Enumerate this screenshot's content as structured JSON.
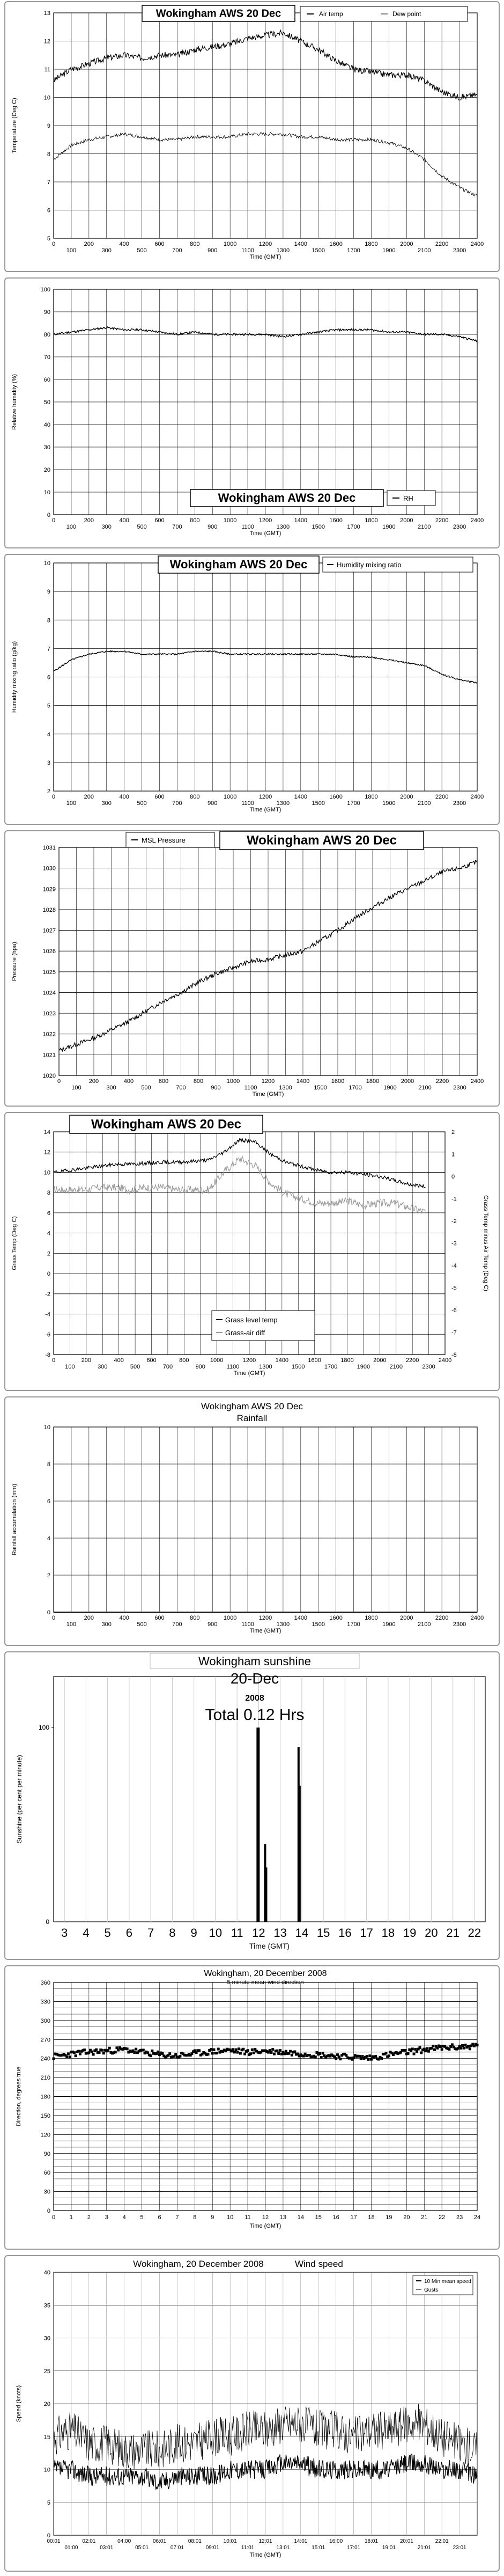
{
  "charts": [
    {
      "type": "line",
      "title": "Wokingham AWS 20 Dec",
      "ylabel": "Temperature (Deg C)",
      "xlabel": "Time (GMT)",
      "yticks": [
        "5",
        "6",
        "7",
        "8",
        "9",
        "10",
        "11",
        "12",
        "13"
      ],
      "ylim": [
        5,
        13
      ],
      "xticks_top": [
        "0",
        "200",
        "400",
        "600",
        "800",
        "1000",
        "1200",
        "1400",
        "1600",
        "1800",
        "2000",
        "2200",
        "2400"
      ],
      "xticks_bottom": [
        "100",
        "300",
        "500",
        "700",
        "900",
        "1100",
        "1300",
        "1500",
        "1700",
        "1900",
        "2100",
        "2300"
      ],
      "legend": [
        "Air temp",
        "Dew point"
      ]
    },
    {
      "type": "line",
      "title": "Wokingham AWS 20 Dec",
      "ylabel": "Relative humidity (%)",
      "xlabel": "Time (GMT)",
      "yticks": [
        "0",
        "10",
        "20",
        "30",
        "40",
        "50",
        "60",
        "70",
        "80",
        "90",
        "100"
      ],
      "ylim": [
        0,
        100
      ],
      "xticks_top": [
        "0",
        "200",
        "400",
        "600",
        "800",
        "1000",
        "1200",
        "1400",
        "1600",
        "1800",
        "2000",
        "2200",
        "2400"
      ],
      "xticks_bottom": [
        "100",
        "300",
        "500",
        "700",
        "900",
        "1100",
        "1300",
        "1500",
        "1700",
        "1900",
        "2100",
        "2300"
      ],
      "legend": [
        "RH"
      ]
    },
    {
      "type": "line",
      "title": "Wokingham AWS 20 Dec",
      "ylabel": "Humidity mixing ratio (g/kg)",
      "xlabel": "Time (GMT)",
      "yticks": [
        "2",
        "3",
        "4",
        "5",
        "6",
        "7",
        "8",
        "9",
        "10"
      ],
      "ylim": [
        2,
        10
      ],
      "xticks_top": [
        "0",
        "200",
        "400",
        "600",
        "800",
        "1000",
        "1200",
        "1400",
        "1600",
        "1800",
        "2000",
        "2200",
        "2400"
      ],
      "xticks_bottom": [
        "100",
        "300",
        "500",
        "700",
        "900",
        "1100",
        "1300",
        "1500",
        "1700",
        "1900",
        "2100",
        "2300"
      ],
      "legend": [
        "Humidity mixing ratio"
      ]
    },
    {
      "type": "line",
      "title": "Wokingham AWS 20 Dec",
      "ylabel": "Pressure (hpa)",
      "xlabel": "Time (GMT)",
      "yticks": [
        "1020",
        "1021",
        "1022",
        "1023",
        "1024",
        "1025",
        "1026",
        "1027",
        "1028",
        "1029",
        "1030",
        "1031"
      ],
      "ylim": [
        1020,
        1031
      ],
      "xticks_top": [
        "0",
        "200",
        "400",
        "600",
        "800",
        "1000",
        "1200",
        "1400",
        "1600",
        "1800",
        "2000",
        "2200",
        "2400"
      ],
      "xticks_bottom": [
        "100",
        "300",
        "500",
        "700",
        "900",
        "1100",
        "1300",
        "1500",
        "1700",
        "1900",
        "2100",
        "2300"
      ],
      "legend": [
        "MSL Pressure"
      ]
    },
    {
      "type": "line",
      "title": "Wokingham AWS 20 Dec",
      "ylabel": "Grass Temp (Deg C)",
      "ylabel2": "Grass Temp minus Air Temp (Deg C)",
      "xlabel": "Time (GMT)",
      "yticks": [
        "-8",
        "-6",
        "-4",
        "-2",
        "0",
        "2",
        "4",
        "6",
        "8",
        "10",
        "12",
        "14"
      ],
      "ylim": [
        -8,
        14
      ],
      "yticks2": [
        "-8",
        "-7",
        "-6",
        "-5",
        "-4",
        "-3",
        "-2",
        "-1",
        "0",
        "1",
        "2"
      ],
      "xticks_top": [
        "0",
        "200",
        "400",
        "600",
        "800",
        "1000",
        "1200",
        "1400",
        "1600",
        "1800",
        "2000",
        "2200",
        "2400"
      ],
      "xticks_bottom": [
        "100",
        "300",
        "500",
        "700",
        "900",
        "1100",
        "1300",
        "1500",
        "1700",
        "1900",
        "2100",
        "2300"
      ],
      "legend": [
        "Grass level temp",
        "Grass-air diff"
      ]
    },
    {
      "type": "line",
      "title": "Wokingham AWS 20 Dec",
      "subtitle": "Rainfall",
      "ylabel": "Rainfall accumulation (mm)",
      "xlabel": "Time (GMT)",
      "yticks": [
        "0",
        "2",
        "4",
        "6",
        "8",
        "10"
      ],
      "ylim": [
        0,
        10
      ],
      "xticks_top": [
        "0",
        "200",
        "400",
        "600",
        "800",
        "1000",
        "1200",
        "1400",
        "1600",
        "1800",
        "2000",
        "2200",
        "2400"
      ],
      "xticks_bottom": [
        "100",
        "300",
        "500",
        "700",
        "900",
        "1100",
        "1300",
        "1500",
        "1700",
        "1900",
        "2100",
        "2300"
      ]
    },
    {
      "type": "bar",
      "title": "Wokingham sunshine",
      "date": "20-Dec",
      "year": "2008",
      "total": "Total 0.12 Hrs",
      "ylabel": "Sunshine (per cent per minute)",
      "xlabel": "Time (GMT)",
      "yticks": [
        "0",
        "100"
      ],
      "xticks": [
        "3",
        "4",
        "5",
        "6",
        "7",
        "8",
        "9",
        "10",
        "11",
        "12",
        "13",
        "14",
        "15",
        "16",
        "17",
        "18",
        "19",
        "20",
        "21",
        "22"
      ]
    },
    {
      "type": "scatter",
      "title": "Wokingham,  20 December 2008",
      "subtitle": "5 minute mean wind direction",
      "ylabel": "Direction, degrees true",
      "xlabel": "Time (GMT)",
      "yticks": [
        "0",
        "30",
        "60",
        "90",
        "120",
        "150",
        "180",
        "210",
        "240",
        "270",
        "300",
        "330",
        "360"
      ],
      "ylim": [
        0,
        360
      ],
      "xticks": [
        "0",
        "1",
        "2",
        "3",
        "4",
        "5",
        "6",
        "7",
        "8",
        "9",
        "10",
        "11",
        "12",
        "13",
        "14",
        "15",
        "16",
        "17",
        "18",
        "19",
        "20",
        "21",
        "22",
        "23",
        "24"
      ]
    },
    {
      "type": "line",
      "title": "Wokingham,  20 December 2008",
      "subtitle": "Wind speed",
      "ylabel": "Speed (knots)",
      "xlabel": "Time (GMT)",
      "yticks": [
        "0",
        "5",
        "10",
        "15",
        "20",
        "25",
        "30",
        "35",
        "40"
      ],
      "ylim": [
        0,
        40
      ],
      "xticks_top": [
        "00:01",
        "02:01",
        "04:00",
        "06:01",
        "08:01",
        "10:01",
        "12:01",
        "14:01",
        "16:00",
        "18:01",
        "20:01",
        "22:01"
      ],
      "xticks_bottom": [
        "01:00",
        "03:01",
        "05:01",
        "07:01",
        "09:01",
        "11:01",
        "13:01",
        "15:01",
        "17:01",
        "19:01",
        "21:01",
        "23:01"
      ],
      "legend": [
        "10 Min mean speed",
        "Gusts"
      ]
    }
  ],
  "chart_data": [
    {
      "type": "line",
      "title": "Wokingham AWS 20 Dec",
      "xlabel": "Time (GMT)",
      "ylabel": "Temperature (Deg C)",
      "ylim": [
        5,
        13
      ],
      "x": [
        0,
        100,
        200,
        300,
        400,
        500,
        600,
        700,
        800,
        900,
        1000,
        1100,
        1200,
        1300,
        1400,
        1500,
        1600,
        1700,
        1800,
        1900,
        2000,
        2100,
        2200,
        2300,
        2400
      ],
      "series": [
        {
          "name": "Air temp",
          "values": [
            10.6,
            11.0,
            11.2,
            11.4,
            11.5,
            11.4,
            11.5,
            11.5,
            11.7,
            11.8,
            11.9,
            12.1,
            12.2,
            12.3,
            12.0,
            11.7,
            11.3,
            11.0,
            10.9,
            10.8,
            10.8,
            10.6,
            10.2,
            10.0,
            10.1
          ]
        },
        {
          "name": "Dew point",
          "values": [
            7.8,
            8.3,
            8.5,
            8.6,
            8.7,
            8.6,
            8.5,
            8.5,
            8.6,
            8.6,
            8.6,
            8.7,
            8.7,
            8.7,
            8.6,
            8.6,
            8.5,
            8.5,
            8.5,
            8.4,
            8.2,
            7.8,
            7.2,
            6.8,
            6.5
          ]
        }
      ]
    },
    {
      "type": "line",
      "title": "Wokingham AWS 20 Dec",
      "xlabel": "Time (GMT)",
      "ylabel": "Relative humidity (%)",
      "ylim": [
        0,
        100
      ],
      "x": [
        0,
        100,
        200,
        300,
        400,
        500,
        600,
        700,
        800,
        900,
        1000,
        1100,
        1200,
        1300,
        1400,
        1500,
        1600,
        1700,
        1800,
        1900,
        2000,
        2100,
        2200,
        2300,
        2400
      ],
      "series": [
        {
          "name": "RH",
          "values": [
            80,
            81,
            82,
            83,
            82,
            82,
            81,
            80,
            81,
            80,
            80,
            80,
            80,
            79,
            80,
            81,
            82,
            82,
            82,
            81,
            81,
            80,
            80,
            79,
            77
          ]
        }
      ]
    },
    {
      "type": "line",
      "title": "Wokingham AWS 20 Dec",
      "xlabel": "Time (GMT)",
      "ylabel": "Humidity mixing ratio (g/kg)",
      "ylim": [
        2,
        10
      ],
      "x": [
        0,
        100,
        200,
        300,
        400,
        500,
        600,
        700,
        800,
        900,
        1000,
        1100,
        1200,
        1300,
        1400,
        1500,
        1600,
        1700,
        1800,
        1900,
        2000,
        2100,
        2200,
        2300,
        2400
      ],
      "series": [
        {
          "name": "Humidity mixing ratio",
          "values": [
            6.2,
            6.6,
            6.8,
            6.9,
            6.9,
            6.8,
            6.8,
            6.8,
            6.9,
            6.9,
            6.8,
            6.8,
            6.8,
            6.8,
            6.8,
            6.8,
            6.8,
            6.7,
            6.7,
            6.6,
            6.5,
            6.4,
            6.1,
            5.9,
            5.8
          ]
        }
      ]
    },
    {
      "type": "line",
      "title": "Wokingham AWS 20 Dec",
      "xlabel": "Time (GMT)",
      "ylabel": "Pressure (hpa)",
      "ylim": [
        1020,
        1031
      ],
      "x": [
        0,
        100,
        200,
        300,
        400,
        500,
        600,
        700,
        800,
        900,
        1000,
        1100,
        1200,
        1300,
        1400,
        1500,
        1600,
        1700,
        1800,
        1900,
        2000,
        2100,
        2200,
        2300,
        2400
      ],
      "series": [
        {
          "name": "MSL Pressure",
          "values": [
            1021.2,
            1021.5,
            1021.8,
            1022.2,
            1022.6,
            1023.1,
            1023.6,
            1024.0,
            1024.5,
            1024.9,
            1025.2,
            1025.5,
            1025.6,
            1025.8,
            1026.0,
            1026.5,
            1027.0,
            1027.6,
            1028.1,
            1028.6,
            1029.0,
            1029.4,
            1029.8,
            1030.0,
            1030.3
          ]
        }
      ]
    },
    {
      "type": "line",
      "title": "Wokingham AWS 20 Dec",
      "xlabel": "Time (GMT)",
      "ylabel": "Grass Temp (Deg C)",
      "ylim": [
        -8,
        14
      ],
      "x": [
        0,
        100,
        200,
        300,
        400,
        500,
        600,
        700,
        800,
        900,
        1000,
        1100,
        1200,
        1300,
        1400,
        1500,
        1600,
        1700,
        1800,
        1900,
        2000,
        2100,
        2200,
        2300,
        2400
      ],
      "series": [
        {
          "name": "Grass level temp",
          "values": [
            10.0,
            10.2,
            10.4,
            10.6,
            10.8,
            10.8,
            10.9,
            11.0,
            11.0,
            11.1,
            11.2,
            12.0,
            13.2,
            13.0,
            11.8,
            11.0,
            10.6,
            10.2,
            10.0,
            10.0,
            9.8,
            9.6,
            9.2,
            8.8,
            8.6
          ]
        },
        {
          "name": "Grass-air diff",
          "values": [
            -0.6,
            -0.6,
            -0.6,
            -0.5,
            -0.5,
            -0.6,
            -0.5,
            -0.5,
            -0.6,
            -0.6,
            -0.6,
            0.2,
            0.8,
            0.5,
            -0.3,
            -0.8,
            -1.0,
            -1.2,
            -1.2,
            -1.1,
            -1.3,
            -1.2,
            -1.2,
            -1.4,
            -1.6
          ]
        }
      ]
    },
    {
      "type": "line",
      "title": "Wokingham AWS 20 Dec",
      "xlabel": "Time (GMT)",
      "ylabel": "Rainfall accumulation (mm)",
      "ylim": [
        0,
        10
      ],
      "x": [
        0,
        2400
      ],
      "series": [
        {
          "values": [
            0,
            0
          ]
        }
      ]
    },
    {
      "type": "bar",
      "title": "Wokingham sunshine",
      "xlabel": "Time (GMT)",
      "ylabel": "Sunshine (per cent per minute)",
      "ylim": [
        0,
        100
      ],
      "x": [
        11.95,
        12.0,
        12.3,
        12.35,
        13.85,
        13.9
      ],
      "values": [
        100,
        100,
        40,
        28,
        90,
        70
      ]
    },
    {
      "type": "scatter",
      "title": "Wokingham,  20 December 2008",
      "xlabel": "Time (GMT)",
      "ylabel": "Direction, degrees true",
      "ylim": [
        0,
        360
      ],
      "x": [
        0,
        1,
        2,
        3,
        4,
        5,
        6,
        7,
        8,
        9,
        10,
        11,
        12,
        13,
        14,
        15,
        16,
        17,
        18,
        19,
        20,
        21,
        22,
        23,
        24
      ],
      "values": [
        243,
        247,
        250,
        252,
        254,
        250,
        246,
        244,
        248,
        251,
        253,
        250,
        252,
        250,
        248,
        246,
        244,
        242,
        241,
        246,
        250,
        254,
        257,
        258,
        260
      ]
    },
    {
      "type": "line",
      "title": "Wokingham,  20 December 2008",
      "xlabel": "Time (GMT)",
      "ylabel": "Speed (knots)",
      "ylim": [
        0,
        40
      ],
      "x": [
        0,
        1,
        2,
        3,
        4,
        5,
        6,
        7,
        8,
        9,
        10,
        11,
        12,
        13,
        14,
        15,
        16,
        17,
        18,
        19,
        20,
        21,
        22,
        23,
        24
      ],
      "series": [
        {
          "name": "10 Min mean speed",
          "values": [
            10,
            10,
            9,
            9,
            9,
            9,
            8,
            9,
            9,
            9,
            10,
            10,
            10,
            11,
            11,
            10,
            10,
            10,
            10,
            10,
            11,
            11,
            10,
            10,
            9
          ]
        },
        {
          "name": "Gusts",
          "values": [
            15,
            16,
            14,
            14,
            13,
            13,
            13,
            14,
            14,
            15,
            15,
            16,
            16,
            17,
            17,
            16,
            16,
            15,
            16,
            16,
            17,
            17,
            15,
            14,
            13
          ]
        }
      ]
    }
  ],
  "colors": {
    "line": "#000000",
    "diff": "#9a9a9a",
    "grid": "#000000",
    "border": "#999999"
  }
}
